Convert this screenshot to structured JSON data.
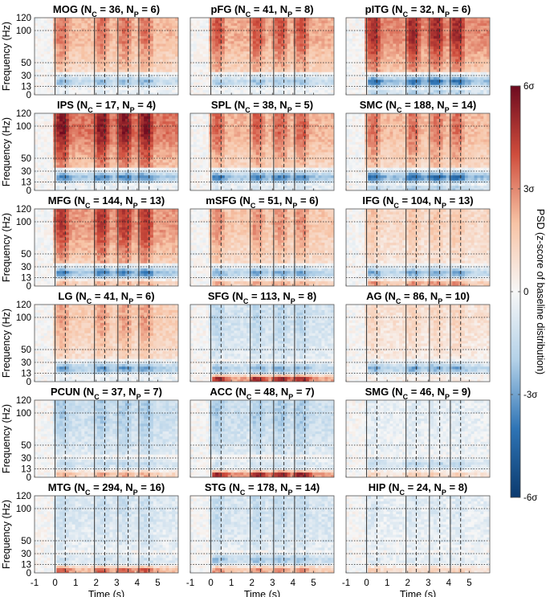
{
  "chart_data": {
    "type": "heatmap",
    "xlabel": "Time (s)",
    "ylabel": "Frequency (Hz)",
    "xlim": [
      -1,
      6
    ],
    "ylim_plot": [
      0,
      120
    ],
    "xticks": [
      "-1",
      "0",
      "1",
      "2",
      "3",
      "4",
      "5"
    ],
    "yticks": [
      "0",
      "13",
      "30",
      "50",
      "100",
      "120"
    ],
    "ytick_values": [
      0,
      13,
      30,
      50,
      100,
      120
    ],
    "frequency_reference_lines": [
      13,
      30,
      50,
      100
    ],
    "event_lines_solid_s": [
      0,
      1.92,
      3.06,
      4.08
    ],
    "event_lines_dashed_s": [
      0.5,
      2.42,
      3.56,
      4.58
    ],
    "colorbar": {
      "label": "PSD (z-score of baseline distribution)",
      "range": [
        -6,
        6
      ],
      "ticks": [
        "-6σ",
        "-3σ",
        "0",
        "3σ",
        "6σ"
      ],
      "tick_values": [
        -6,
        -3,
        0,
        3,
        6
      ],
      "colors": [
        "#0b3a6e",
        "#2e74b5",
        "#b3d1e8",
        "#f7f7f7",
        "#f7c3a5",
        "#cf4d3c",
        "#6d0a1f"
      ]
    },
    "panels": [
      {
        "region": "MOG",
        "n_c": "36",
        "n_p": "6",
        "high_gamma": 2.6,
        "beta": -2.6,
        "low": -0.5
      },
      {
        "region": "pFG",
        "n_c": "41",
        "n_p": "8",
        "high_gamma": 3.0,
        "beta": -2.4,
        "low": -0.4
      },
      {
        "region": "pITG",
        "n_c": "32",
        "n_p": "6",
        "high_gamma": 3.8,
        "beta": -4.3,
        "low": -2.0
      },
      {
        "region": "IPS",
        "n_c": "17",
        "n_p": "4",
        "high_gamma": 4.2,
        "beta": -3.8,
        "low": -0.6
      },
      {
        "region": "SPL",
        "n_c": "38",
        "n_p": "5",
        "high_gamma": 2.8,
        "beta": -3.9,
        "low": -1.0
      },
      {
        "region": "SMC",
        "n_c": "188",
        "n_p": "14",
        "high_gamma": 2.6,
        "beta": -4.5,
        "low": -2.2
      },
      {
        "region": "MFG",
        "n_c": "144",
        "n_p": "13",
        "high_gamma": 3.5,
        "beta": -3.8,
        "low": 2.5
      },
      {
        "region": "mSFG",
        "n_c": "51",
        "n_p": "6",
        "high_gamma": 2.2,
        "beta": -3.0,
        "low": 2.8
      },
      {
        "region": "IFG",
        "n_c": "104",
        "n_p": "13",
        "high_gamma": 1.4,
        "beta": -3.0,
        "low": 3.2
      },
      {
        "region": "LG",
        "n_c": "41",
        "n_p": "6",
        "high_gamma": 2.0,
        "beta": -3.4,
        "low": -0.6
      },
      {
        "region": "SFG",
        "n_c": "113",
        "n_p": "8",
        "high_gamma": -1.3,
        "beta": -2.8,
        "low": 5.4
      },
      {
        "region": "AG",
        "n_c": "86",
        "n_p": "10",
        "high_gamma": 1.0,
        "beta": -3.0,
        "low": 0.5
      },
      {
        "region": "PCUN",
        "n_c": "37",
        "n_p": "7",
        "high_gamma": -1.6,
        "beta": -1.8,
        "low": 2.6
      },
      {
        "region": "ACC",
        "n_c": "48",
        "n_p": "7",
        "high_gamma": -1.6,
        "beta": -1.2,
        "low": 5.8
      },
      {
        "region": "SMG",
        "n_c": "46",
        "n_p": "9",
        "high_gamma": -0.5,
        "beta": -1.8,
        "low": 1.6
      },
      {
        "region": "MTG",
        "n_c": "294",
        "n_p": "16",
        "high_gamma": -1.0,
        "beta": -1.3,
        "low": 4.2
      },
      {
        "region": "STG",
        "n_c": "178",
        "n_p": "14",
        "high_gamma": -1.2,
        "beta": -2.5,
        "low": 3.2
      },
      {
        "region": "HIP",
        "n_c": "24",
        "n_p": "8",
        "high_gamma": -0.6,
        "beta": -0.8,
        "low": 1.6
      }
    ]
  }
}
